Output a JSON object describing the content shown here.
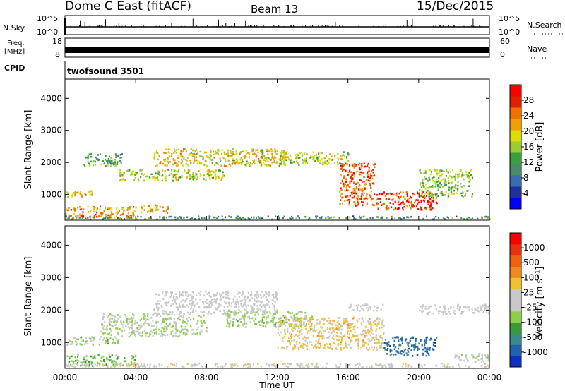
{
  "header": {
    "site": "Dome C East (fitACF)",
    "beam": "Beam 13",
    "date": "15/Dec/2015"
  },
  "panels": {
    "nsky": {
      "label": "N.Sky",
      "tick_top": "10^5",
      "tick_bottom": "10^0",
      "right_label": "N.Search"
    },
    "freq": {
      "label_line1": "Freq.",
      "label_line2": "[MHz]",
      "tick_top": "18",
      "tick_bottom": "8",
      "right_tick_top": "60",
      "right_tick_bottom": "0",
      "right_label": "Nave"
    },
    "cpid": {
      "label": "CPID",
      "program": "twofsound 3501"
    }
  },
  "colorbars": {
    "power": {
      "label": "Power [dB]",
      "ticks": [
        "4",
        "8",
        "12",
        "16",
        "20",
        "24",
        "28"
      ],
      "colors": [
        "#0000ff",
        "#2030a0",
        "#3a6ab0",
        "#4a8a6a",
        "#3aa03a",
        "#9acd32",
        "#dddd00",
        "#f0a000",
        "#f07000",
        "#e02000",
        "#ff0000"
      ]
    },
    "velocity": {
      "label": "Velocity [m s⁻¹]",
      "ticks": [
        "1000",
        "500",
        "100",
        "25",
        "-25",
        "-100",
        "-500",
        "-1000"
      ],
      "colors": [
        "#1030c0",
        "#2060b0",
        "#3a8a8a",
        "#3a9a3a",
        "#8ad04a",
        "#c8c8c8",
        "#c8c8c8",
        "#f0c030",
        "#f08a20",
        "#f06010",
        "#e83010",
        "#ff0000"
      ]
    }
  },
  "axes": {
    "y_label": "Slant Range [km]",
    "y_ticks": [
      "1000",
      "2000",
      "3000",
      "4000"
    ],
    "x_label": "Time UT",
    "x_ticks": [
      "00:00",
      "04:00",
      "08:00",
      "12:00",
      "16:00",
      "20:00",
      "00:00"
    ]
  },
  "chart_data": [
    {
      "type": "heatmap",
      "title": "Power",
      "xlabel": "Time UT",
      "ylabel": "Slant Range [km]",
      "xlim": [
        0,
        24
      ],
      "ylim": [
        200,
        4600
      ],
      "colorbar": {
        "label": "Power [dB]",
        "range": [
          0,
          30
        ]
      },
      "regions": [
        {
          "t0": 0.0,
          "t1": 1.6,
          "r0": 950,
          "r1": 1150,
          "value": 18
        },
        {
          "t0": 0.0,
          "t1": 4.0,
          "r0": 280,
          "r1": 650,
          "value": 22
        },
        {
          "t0": 1.0,
          "t1": 3.2,
          "r0": 1900,
          "r1": 2300,
          "value": 12
        },
        {
          "t0": 3.0,
          "t1": 9.0,
          "r0": 1450,
          "r1": 1800,
          "value": 16
        },
        {
          "t0": 5.0,
          "t1": 12.5,
          "r0": 1900,
          "r1": 2450,
          "value": 18
        },
        {
          "t0": 12.0,
          "t1": 16.0,
          "r0": 1950,
          "r1": 2350,
          "value": 16
        },
        {
          "t0": 15.5,
          "t1": 17.5,
          "r0": 650,
          "r1": 2000,
          "value": 24
        },
        {
          "t0": 17.5,
          "t1": 21.0,
          "r0": 550,
          "r1": 1100,
          "value": 26
        },
        {
          "t0": 20.0,
          "t1": 23.0,
          "r0": 950,
          "r1": 1800,
          "value": 14
        },
        {
          "t0": 4.2,
          "t1": 5.8,
          "r0": 450,
          "r1": 700,
          "value": 20
        },
        {
          "t0": 0.0,
          "t1": 24.0,
          "r0": 250,
          "r1": 350,
          "value": 10
        }
      ]
    },
    {
      "type": "heatmap",
      "title": "Velocity",
      "xlabel": "Time UT",
      "ylabel": "Slant Range [km]",
      "xlim": [
        0,
        24
      ],
      "ylim": [
        200,
        4600
      ],
      "colorbar": {
        "label": "Velocity [m s⁻¹]",
        "range": [
          -1000,
          1000
        ]
      },
      "regions": [
        {
          "t0": 0.0,
          "t1": 3.0,
          "r0": 950,
          "r1": 1200,
          "value": -200
        },
        {
          "t0": 0.0,
          "t1": 4.0,
          "r0": 300,
          "r1": 650,
          "value": -300
        },
        {
          "t0": 2.0,
          "t1": 8.0,
          "r0": 1200,
          "r1": 1900,
          "value": -150
        },
        {
          "t0": 5.0,
          "t1": 12.0,
          "r0": 1900,
          "r1": 2600,
          "value": 0
        },
        {
          "t0": 9.0,
          "t1": 14.0,
          "r0": 1500,
          "r1": 2000,
          "value": -200
        },
        {
          "t0": 12.0,
          "t1": 18.0,
          "r0": 800,
          "r1": 1800,
          "value": 200
        },
        {
          "t0": 16.0,
          "t1": 18.0,
          "r0": 2000,
          "r1": 2200,
          "value": 0
        },
        {
          "t0": 18.0,
          "t1": 21.0,
          "r0": 600,
          "r1": 1200,
          "value": -700
        },
        {
          "t0": 20.0,
          "t1": 24.0,
          "r0": 1900,
          "r1": 2200,
          "value": 0
        },
        {
          "t0": 0.0,
          "t1": 24.0,
          "r0": 250,
          "r1": 380,
          "value": 60
        },
        {
          "t0": 22.0,
          "t1": 24.0,
          "r0": 400,
          "r1": 700,
          "value": -60
        }
      ]
    }
  ]
}
